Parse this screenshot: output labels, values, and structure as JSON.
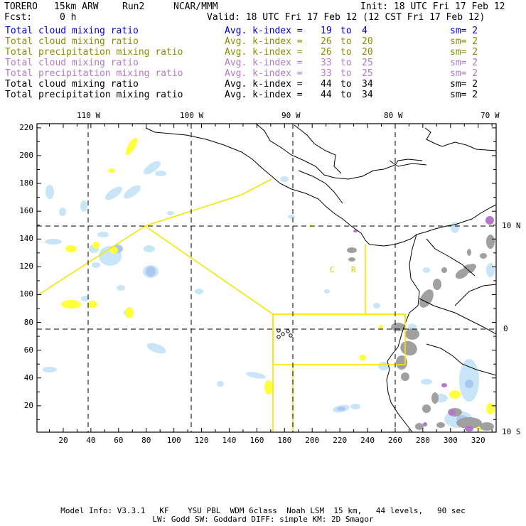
{
  "header": {
    "model": "TORERO",
    "resolution": "15km ARW",
    "run": "Run2",
    "org": "NCAR/MMM",
    "init": "Init: 18 UTC Fri 17 Feb 12",
    "fcst_label": "Fcst:",
    "fcst_value": "0 h",
    "valid": "Valid: 18 UTC Fri 17 Feb 12 (12 CST Fri 17 Feb 12)"
  },
  "legend": [
    {
      "field": "Total cloud mixing ratio",
      "avg": "Avg. k-index =",
      "k1": "19",
      "to": "to",
      "k2": "4",
      "sm": "sm= 2",
      "color": "#0000c8"
    },
    {
      "field": "Total cloud mixing ratio",
      "avg": "Avg. k-index =",
      "k1": "26",
      "to": "to",
      "k2": "20",
      "sm": "sm= 2",
      "color": "#8c8c00"
    },
    {
      "field": "Total precipitation mixing ratio",
      "avg": "Avg. k-index =",
      "k1": "26",
      "to": "to",
      "k2": "20",
      "sm": "sm= 2",
      "color": "#8c8c00"
    },
    {
      "field": "Total cloud mixing ratio",
      "avg": "Avg. k-index =",
      "k1": "33",
      "to": "to",
      "k2": "25",
      "sm": "sm= 2",
      "color": "#b478c8"
    },
    {
      "field": "Total precipitation mixing ratio",
      "avg": "Avg. k-index =",
      "k1": "33",
      "to": "to",
      "k2": "25",
      "sm": "sm= 2",
      "color": "#b478c8"
    },
    {
      "field": "Total cloud mixing ratio",
      "avg": "Avg. k-index =",
      "k1": "44",
      "to": "to",
      "k2": "34",
      "sm": "sm= 2",
      "color": "#000000"
    },
    {
      "field": "Total precipitation mixing ratio",
      "avg": "Avg. k-index =",
      "k1": "44",
      "to": "to",
      "k2": "34",
      "sm": "sm= 2",
      "color": "#000000"
    }
  ],
  "map": {
    "x_range": [
      1,
      333
    ],
    "y_range": [
      1,
      223
    ],
    "x_ticks": [
      "20",
      "40",
      "60",
      "80",
      "100",
      "120",
      "140",
      "160",
      "180",
      "200",
      "220",
      "240",
      "260",
      "280",
      "300",
      "320"
    ],
    "y_ticks": [
      "20",
      "40",
      "60",
      "80",
      "100",
      "120",
      "140",
      "160",
      "180",
      "200",
      "220"
    ],
    "lon_labels": [
      "110 W",
      "100 W",
      "90 W",
      "80 W",
      "70 W"
    ],
    "lat_labels": [
      "10 N",
      "0",
      "10 S"
    ],
    "region_labels": [
      "C",
      "R"
    ],
    "colors": {
      "cloud_light": "#c8e6f8",
      "cloud_mid": "#aac8f0",
      "precip_yellow": "#ffff3c",
      "high_gray": "#a0a0a0",
      "high_purple": "#b478c8",
      "box_yellow": "#f5e600",
      "coast": "#000000"
    }
  },
  "footer": {
    "line1": "Model Info: V3.3.1   KF    YSU PBL  WDM 6class  Noah LSM  15 km,   44 levels,   90 sec",
    "line2": "LW: Godd SW: Goddard DIFF: simple KM: 2D Smagor"
  }
}
